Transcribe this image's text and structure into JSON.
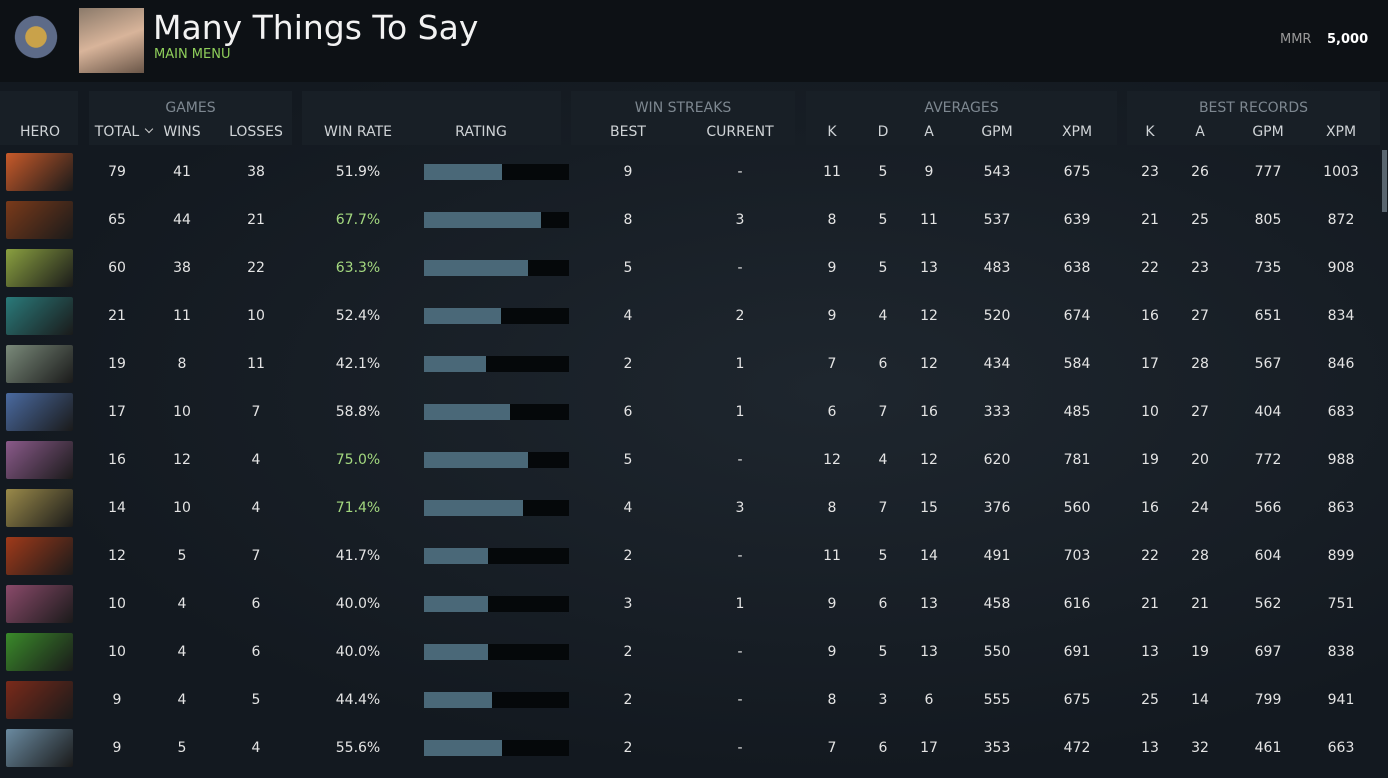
{
  "header": {
    "title": "Many Things To Say",
    "subtitle": "MAIN MENU",
    "mmr_label": "MMR",
    "mmr_value": "5,000"
  },
  "table": {
    "groups": [
      "GAMES",
      "WIN STREAKS",
      "AVERAGES",
      "BEST RECORDS"
    ],
    "columns": [
      "HERO",
      "TOTAL",
      "WINS",
      "LOSSES",
      "WIN RATE",
      "RATING",
      "BEST",
      "CURRENT",
      "K",
      "D",
      "A",
      "GPM",
      "XPM",
      "K",
      "A",
      "GPM",
      "XPM"
    ],
    "rating_scale": [
      0,
      100
    ],
    "rows": [
      {
        "cells": [
          79,
          41,
          38,
          "51.9%",
          54,
          9,
          "-",
          11,
          5,
          9,
          543,
          675,
          23,
          26,
          777,
          1003
        ],
        "highlight": false
      },
      {
        "cells": [
          65,
          44,
          21,
          "67.7%",
          81,
          8,
          3,
          8,
          5,
          11,
          537,
          639,
          21,
          25,
          805,
          872
        ],
        "highlight": true
      },
      {
        "cells": [
          60,
          38,
          22,
          "63.3%",
          72,
          5,
          "-",
          9,
          5,
          13,
          483,
          638,
          22,
          23,
          735,
          908
        ],
        "highlight": true
      },
      {
        "cells": [
          21,
          11,
          10,
          "52.4%",
          53,
          4,
          2,
          9,
          4,
          12,
          520,
          674,
          16,
          27,
          651,
          834
        ],
        "highlight": false
      },
      {
        "cells": [
          19,
          8,
          11,
          "42.1%",
          43,
          2,
          1,
          7,
          6,
          12,
          434,
          584,
          17,
          28,
          567,
          846
        ],
        "highlight": false
      },
      {
        "cells": [
          17,
          10,
          7,
          "58.8%",
          59,
          6,
          1,
          6,
          7,
          16,
          333,
          485,
          10,
          27,
          404,
          683
        ],
        "highlight": false
      },
      {
        "cells": [
          16,
          12,
          4,
          "75.0%",
          72,
          5,
          "-",
          12,
          4,
          12,
          620,
          781,
          19,
          20,
          772,
          988
        ],
        "highlight": true
      },
      {
        "cells": [
          14,
          10,
          4,
          "71.4%",
          68,
          4,
          3,
          8,
          7,
          15,
          376,
          560,
          16,
          24,
          566,
          863
        ],
        "highlight": true
      },
      {
        "cells": [
          12,
          5,
          7,
          "41.7%",
          44,
          2,
          "-",
          11,
          5,
          14,
          491,
          703,
          22,
          28,
          604,
          899
        ],
        "highlight": false
      },
      {
        "cells": [
          10,
          4,
          6,
          "40.0%",
          44,
          3,
          1,
          9,
          6,
          13,
          458,
          616,
          21,
          21,
          562,
          751
        ],
        "highlight": false
      },
      {
        "cells": [
          10,
          4,
          6,
          "40.0%",
          44,
          2,
          "-",
          9,
          5,
          13,
          550,
          691,
          13,
          19,
          697,
          838
        ],
        "highlight": false
      },
      {
        "cells": [
          9,
          4,
          5,
          "44.4%",
          47,
          2,
          "-",
          8,
          3,
          6,
          555,
          675,
          25,
          14,
          799,
          941
        ],
        "highlight": false
      },
      {
        "cells": [
          9,
          5,
          4,
          "55.6%",
          54,
          2,
          "-",
          7,
          6,
          17,
          353,
          472,
          13,
          32,
          461,
          663
        ],
        "highlight": false
      }
    ]
  }
}
